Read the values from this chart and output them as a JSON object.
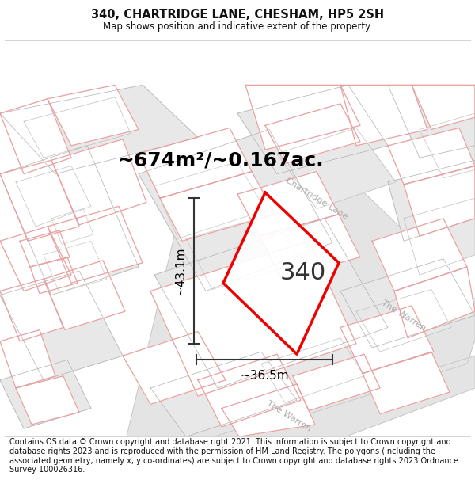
{
  "title": "340, CHARTRIDGE LANE, CHESHAM, HP5 2SH",
  "subtitle": "Map shows position and indicative extent of the property.",
  "footer": "Contains OS data © Crown copyright and database right 2021. This information is subject to Crown copyright and database rights 2023 and is reproduced with the permission of HM Land Registry. The polygons (including the associated geometry, namely x, y co-ordinates) are subject to Crown copyright and database rights 2023 Ordnance Survey 100026316.",
  "area_label": "~674m²/~0.167ac.",
  "width_label": "~36.5m",
  "height_label": "~43.1m",
  "plot_number": "340",
  "bg_color": "#ffffff",
  "parcel_fill": "#e8e8e8",
  "parcel_stroke": "#b0b0b0",
  "pink_stroke": "#e8a0a0",
  "pink_fill": "#ffffff",
  "red_plot_color": "#ee0000",
  "road_fill": "#e4e4e4",
  "road_stroke": "#c0c0c0",
  "title_fontsize": 10.5,
  "subtitle_fontsize": 8.5,
  "footer_fontsize": 7.0,
  "area_fontsize": 18,
  "plot_number_fontsize": 22,
  "dim_fontsize": 11
}
